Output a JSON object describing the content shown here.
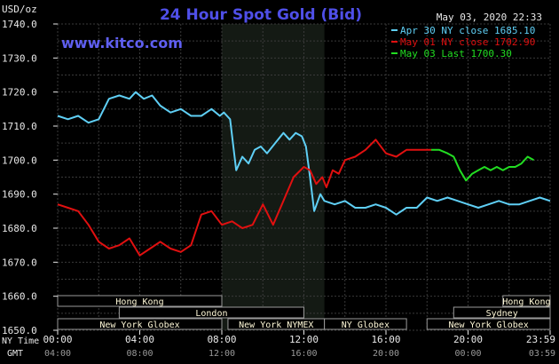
{
  "chart_data": {
    "type": "line",
    "title": "24 Hour Spot Gold (Bid)",
    "ylabel": "USD/oz",
    "timestamp": "May 03, 2020 22:33",
    "website": "www.kitco.com",
    "ylim": [
      1650,
      1740
    ],
    "yticks": [
      "1740.0",
      "1730.0",
      "1720.0",
      "1710.0",
      "1700.0",
      "1690.0",
      "1680.0",
      "1670.0",
      "1660.0",
      "1650.0"
    ],
    "x_row1_label": "NY Time",
    "x_row2_label": "GMT",
    "x_ticks_ny": [
      "00:00",
      "04:00",
      "08:00",
      "12:00",
      "16:00",
      "20:00",
      "23:59"
    ],
    "x_ticks_gmt": [
      "04:00",
      "08:00",
      "12:00",
      "16:00",
      "20:00",
      "00:00",
      "03:59"
    ],
    "xlim_hours": [
      0,
      24
    ],
    "grid": true,
    "legend_position": "top-right",
    "colors": {
      "blue": "#5fcff5",
      "red": "#e01010",
      "green": "#22dd22",
      "grid": "#3a3a3a",
      "axis_text": "#e8e8e8",
      "shade": "#141a14",
      "session_bar": "#fff9d8",
      "session_border": "#9a9a9a"
    },
    "shaded_session_hours": [
      8,
      13
    ],
    "series": [
      {
        "name": "Apr 30 NY close 1685.10",
        "color": "#5fcff5",
        "hours": [
          0,
          0.5,
          1,
          1.5,
          2,
          2.5,
          3,
          3.5,
          3.8,
          4.2,
          4.6,
          5,
          5.5,
          6,
          6.5,
          7,
          7.5,
          7.9,
          8.1,
          8.4,
          8.7,
          9,
          9.3,
          9.6,
          9.9,
          10.2,
          10.6,
          11,
          11.3,
          11.6,
          11.9,
          12.1,
          12.3,
          12.5,
          12.8,
          13,
          13.5,
          14,
          14.5,
          15,
          15.5,
          16,
          16.5,
          17,
          17.5,
          18,
          18.5,
          19,
          19.5,
          20,
          20.5,
          21,
          21.5,
          22,
          22.5,
          23,
          23.5,
          24
        ],
        "values": [
          1713,
          1712,
          1713,
          1711,
          1712,
          1718,
          1719,
          1718,
          1720,
          1718,
          1719,
          1716,
          1714,
          1715,
          1713,
          1713,
          1715,
          1713,
          1714,
          1712,
          1697,
          1701,
          1699,
          1703,
          1704,
          1702,
          1705,
          1708,
          1706,
          1708,
          1707,
          1704,
          1695,
          1685,
          1690,
          1688,
          1687,
          1688,
          1686,
          1686,
          1687,
          1686,
          1684,
          1686,
          1686,
          1689,
          1688,
          1689,
          1688,
          1687,
          1686,
          1687,
          1688,
          1687,
          1687,
          1688,
          1689,
          1688
        ]
      },
      {
        "name": "May 01 NY close 1702.90",
        "color": "#e01010",
        "hours": [
          0,
          0.5,
          1,
          1.5,
          2,
          2.5,
          3,
          3.5,
          4,
          4.5,
          5,
          5.5,
          6,
          6.5,
          7,
          7.5,
          8,
          8.5,
          9,
          9.5,
          10,
          10.5,
          11,
          11.5,
          12,
          12.3,
          12.6,
          12.9,
          13.1,
          13.4,
          13.7,
          14,
          14.5,
          15,
          15.5,
          16,
          16.5,
          17,
          17.5,
          18,
          18.2
        ],
        "values": [
          1687,
          1686,
          1685,
          1681,
          1676,
          1674,
          1675,
          1677,
          1672,
          1674,
          1676,
          1674,
          1673,
          1675,
          1684,
          1685,
          1681,
          1682,
          1680,
          1681,
          1687,
          1681,
          1688,
          1695,
          1698,
          1697,
          1693,
          1695,
          1692,
          1697,
          1696,
          1700,
          1701,
          1703,
          1706,
          1702,
          1701,
          1703,
          1703,
          1703,
          1703
        ]
      },
      {
        "name": "May 03 Last 1700.30",
        "color": "#22dd22",
        "hours": [
          18.2,
          18.6,
          19,
          19.3,
          19.6,
          19.9,
          20.2,
          20.5,
          20.8,
          21.1,
          21.4,
          21.7,
          22,
          22.3,
          22.6,
          22.9,
          23.2
        ],
        "values": [
          1703,
          1703,
          1702,
          1701,
          1697,
          1694,
          1696,
          1697,
          1698,
          1697,
          1698,
          1697,
          1698,
          1698,
          1699,
          1701,
          1700
        ]
      }
    ],
    "sessions": [
      {
        "label": "Hong Kong",
        "start": 0,
        "end": 8,
        "row": 1
      },
      {
        "label": "London",
        "start": 3,
        "end": 12,
        "row": 2
      },
      {
        "label": "New York Globex",
        "start": 0,
        "end": 8,
        "row": 3
      },
      {
        "label": "New York NYMEX",
        "start": 8.3,
        "end": 13,
        "row": 3
      },
      {
        "label": "NY Globex",
        "start": 13,
        "end": 17,
        "row": 3
      },
      {
        "label": "Hong Kong",
        "start": 21.7,
        "end": 24,
        "row": 1
      },
      {
        "label": "Sydney",
        "start": 19.3,
        "end": 24,
        "row": 2
      },
      {
        "label": "New York Globex",
        "start": 18,
        "end": 24,
        "row": 3
      }
    ]
  }
}
